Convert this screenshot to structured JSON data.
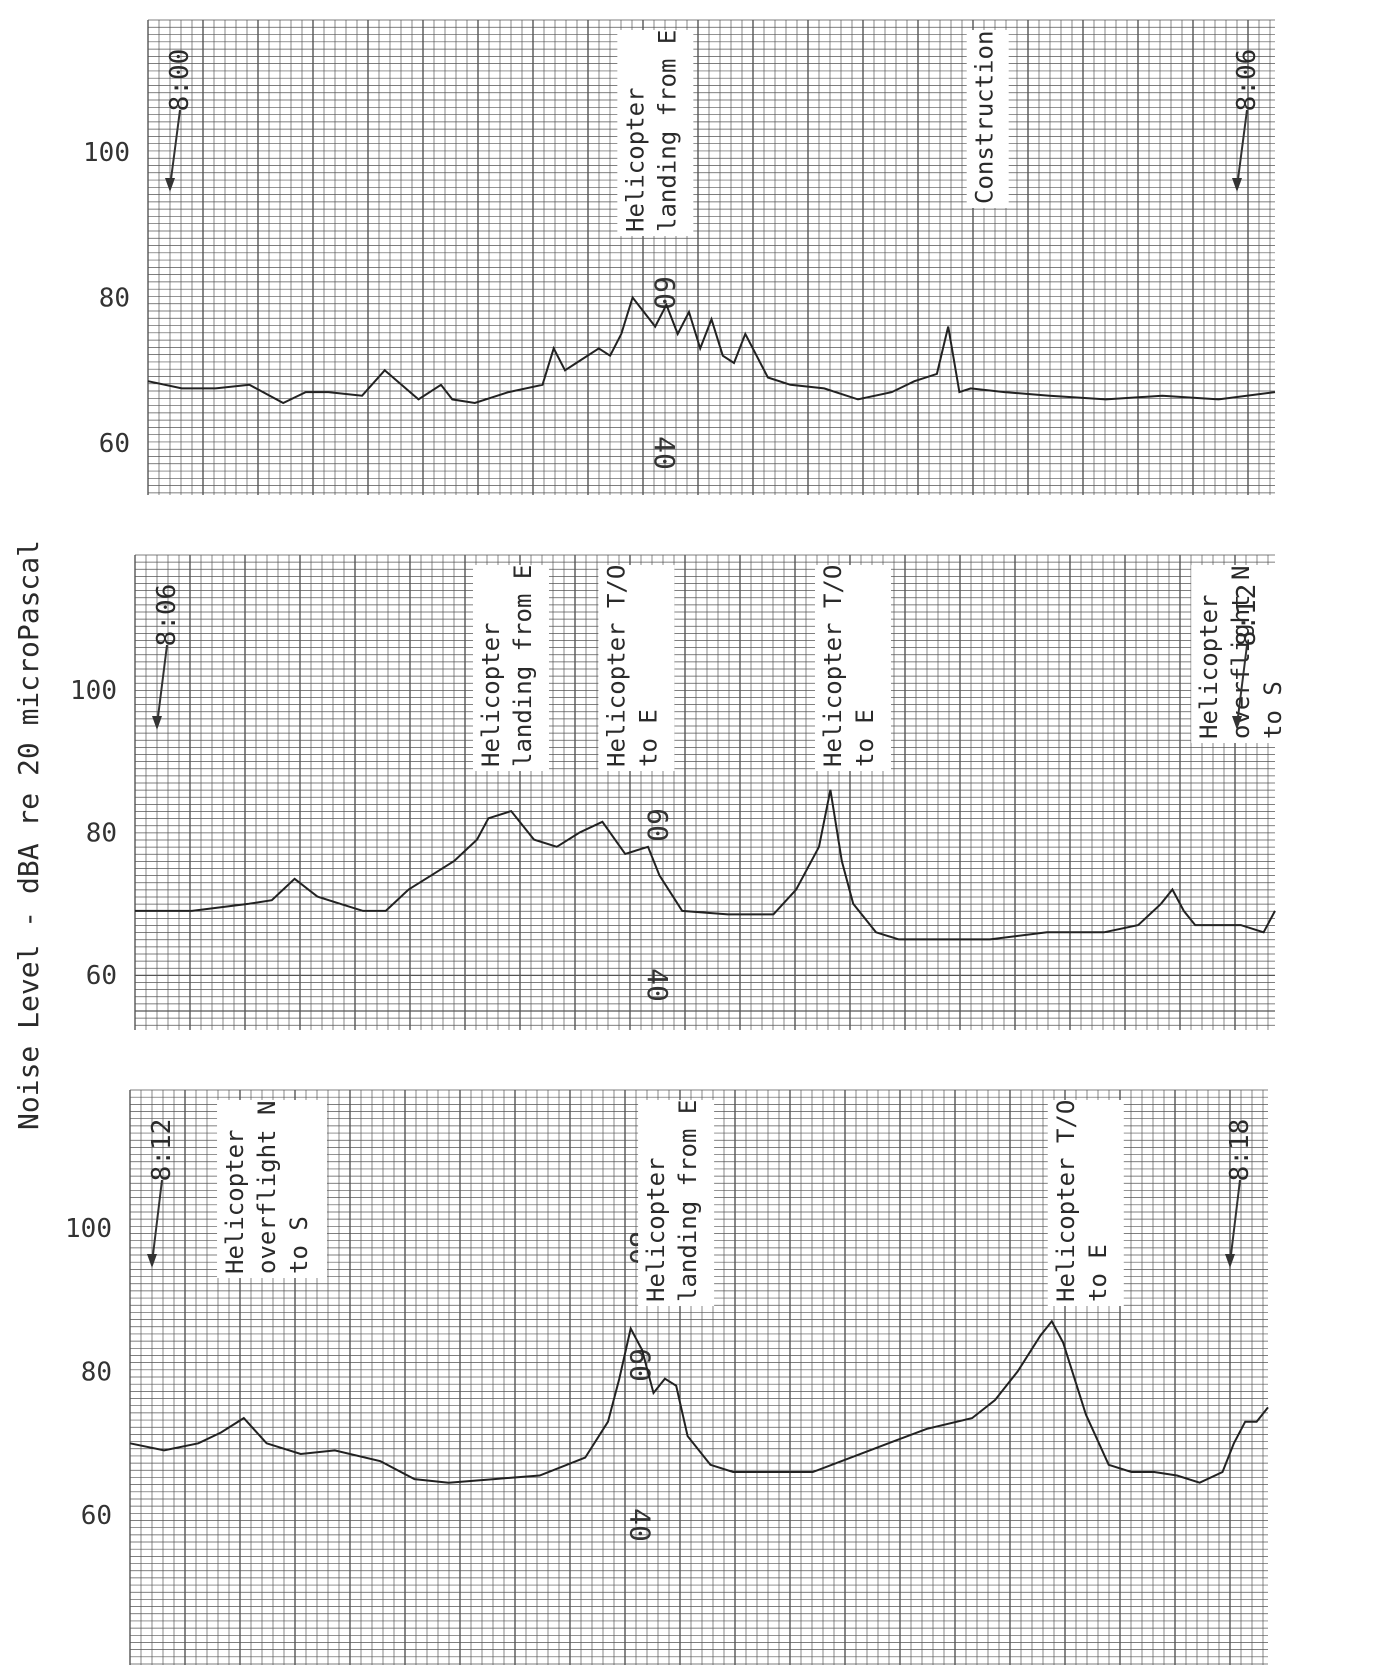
{
  "ylabel": "Noise Level - dBA re 20 microPascal",
  "paper_scale": {
    "top": "80",
    "bottom": "60",
    "low": "40",
    "edge": "OC"
  },
  "chart_data": [
    {
      "type": "line",
      "start": "8:00",
      "end": "8:06",
      "y_ticks": [
        100,
        80,
        60
      ],
      "ylim": [
        55,
        115
      ],
      "grid": true,
      "annotations": [
        {
          "text": "Helicopter landing from E",
          "at": 0.42
        },
        {
          "text": "Construction",
          "at": 0.73
        }
      ],
      "x": [
        0,
        0.03,
        0.06,
        0.09,
        0.12,
        0.14,
        0.16,
        0.19,
        0.21,
        0.24,
        0.26,
        0.27,
        0.29,
        0.32,
        0.35,
        0.36,
        0.37,
        0.38,
        0.4,
        0.41,
        0.42,
        0.43,
        0.44,
        0.45,
        0.46,
        0.47,
        0.48,
        0.49,
        0.5,
        0.51,
        0.52,
        0.53,
        0.55,
        0.57,
        0.6,
        0.63,
        0.66,
        0.68,
        0.7,
        0.71,
        0.72,
        0.73,
        0.76,
        0.8,
        0.85,
        0.9,
        0.95,
        1.0
      ],
      "values": [
        68.5,
        67.5,
        67.5,
        68,
        65.5,
        67,
        67,
        66.5,
        70,
        66,
        68,
        66,
        65.5,
        67,
        68,
        73,
        70,
        71,
        73,
        72,
        75,
        80,
        78,
        76,
        79,
        75,
        78,
        73,
        77,
        72,
        71,
        75,
        69,
        68,
        67.5,
        66,
        67,
        68.5,
        69.5,
        76,
        67,
        67.5,
        67,
        66.5,
        66,
        66.5,
        66,
        67
      ]
    },
    {
      "type": "line",
      "start": "8:06",
      "end": "8:12",
      "y_ticks": [
        100,
        80,
        60
      ],
      "ylim": [
        55,
        115
      ],
      "grid": true,
      "annotations": [
        {
          "text": "Helicopter landing from E",
          "at": 0.3
        },
        {
          "text": "Helicopter T/O to E",
          "at": 0.41
        },
        {
          "text": "Helicopter T/O to E",
          "at": 0.6
        },
        {
          "text": "Helicopter overflight N to S",
          "at": 0.93
        }
      ],
      "x": [
        0,
        0.05,
        0.1,
        0.12,
        0.14,
        0.16,
        0.18,
        0.2,
        0.22,
        0.24,
        0.26,
        0.28,
        0.3,
        0.31,
        0.33,
        0.35,
        0.37,
        0.39,
        0.41,
        0.43,
        0.45,
        0.46,
        0.48,
        0.52,
        0.56,
        0.58,
        0.6,
        0.61,
        0.62,
        0.63,
        0.65,
        0.67,
        0.7,
        0.75,
        0.8,
        0.85,
        0.88,
        0.9,
        0.91,
        0.92,
        0.93,
        0.95,
        0.97,
        0.99,
        1.0
      ],
      "values": [
        69,
        69,
        70,
        70.5,
        73.5,
        71,
        70,
        69,
        69,
        72,
        74,
        76,
        79,
        82,
        83,
        79,
        78,
        80,
        81.5,
        77,
        78,
        74,
        69,
        68.5,
        68.5,
        72,
        78,
        86,
        76,
        70,
        66,
        65,
        65,
        65,
        66,
        66,
        67,
        70,
        72,
        69,
        67,
        67,
        67,
        66,
        69
      ]
    },
    {
      "type": "line",
      "start": "8:12",
      "end": "8:18",
      "y_ticks": [
        100,
        80,
        60
      ],
      "ylim": [
        55,
        115
      ],
      "grid": true,
      "annotations": [
        {
          "text": "Helicopter overflight N to S",
          "at": 0.08
        },
        {
          "text": "Helicopter landing from E",
          "at": 0.45
        },
        {
          "text": "Helicopter T/O to E",
          "at": 0.81
        }
      ],
      "x": [
        0,
        0.03,
        0.06,
        0.08,
        0.1,
        0.12,
        0.15,
        0.18,
        0.22,
        0.25,
        0.28,
        0.32,
        0.36,
        0.4,
        0.42,
        0.43,
        0.44,
        0.45,
        0.46,
        0.47,
        0.48,
        0.49,
        0.51,
        0.53,
        0.56,
        0.6,
        0.65,
        0.7,
        0.74,
        0.76,
        0.78,
        0.8,
        0.81,
        0.82,
        0.84,
        0.86,
        0.88,
        0.9,
        0.92,
        0.94,
        0.96,
        0.97,
        0.98,
        0.99,
        1.0
      ],
      "values": [
        70,
        69,
        70,
        71.5,
        73.5,
        70,
        68.5,
        69,
        67.5,
        65,
        64.5,
        65,
        65.5,
        68,
        73,
        79,
        86,
        83,
        77,
        79,
        78,
        71,
        67,
        66,
        66,
        66,
        69,
        72,
        73.5,
        76,
        80,
        85,
        87,
        84,
        74,
        67,
        66,
        66,
        65.5,
        64.5,
        66,
        70,
        73,
        73,
        75
      ]
    }
  ]
}
